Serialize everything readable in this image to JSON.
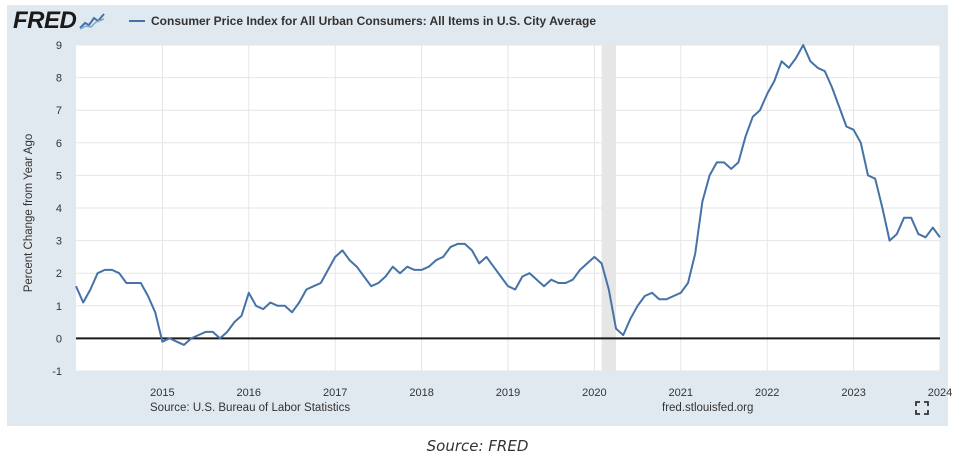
{
  "brand": {
    "logo_text": "FRED"
  },
  "chart_data": {
    "type": "line",
    "title": "Consumer Price Index for All Urban Consumers: All Items in U.S. City Average",
    "ylabel": "Percent Change from Year Ago",
    "xlabel": "",
    "xlim": [
      "2014-01",
      "2024-01"
    ],
    "ylim": [
      -1,
      9
    ],
    "yticks": [
      -1,
      0,
      1,
      2,
      3,
      4,
      5,
      6,
      7,
      8,
      9
    ],
    "xticks": [
      "2015",
      "2016",
      "2017",
      "2018",
      "2019",
      "2020",
      "2021",
      "2022",
      "2023",
      "2024"
    ],
    "grid": true,
    "zero_line": true,
    "recession_shade": {
      "start": "2020-02",
      "end": "2020-04"
    },
    "series": [
      {
        "color": "#4572a7",
        "points": [
          [
            "2014-01",
            1.6
          ],
          [
            "2014-02",
            1.1
          ],
          [
            "2014-03",
            1.5
          ],
          [
            "2014-04",
            2.0
          ],
          [
            "2014-05",
            2.1
          ],
          [
            "2014-06",
            2.1
          ],
          [
            "2014-07",
            2.0
          ],
          [
            "2014-08",
            1.7
          ],
          [
            "2014-09",
            1.7
          ],
          [
            "2014-10",
            1.7
          ],
          [
            "2014-11",
            1.3
          ],
          [
            "2014-12",
            0.8
          ],
          [
            "2015-01",
            -0.1
          ],
          [
            "2015-02",
            0.0
          ],
          [
            "2015-03",
            -0.1
          ],
          [
            "2015-04",
            -0.2
          ],
          [
            "2015-05",
            0.0
          ],
          [
            "2015-06",
            0.1
          ],
          [
            "2015-07",
            0.2
          ],
          [
            "2015-08",
            0.2
          ],
          [
            "2015-09",
            0.0
          ],
          [
            "2015-10",
            0.2
          ],
          [
            "2015-11",
            0.5
          ],
          [
            "2015-12",
            0.7
          ],
          [
            "2016-01",
            1.4
          ],
          [
            "2016-02",
            1.0
          ],
          [
            "2016-03",
            0.9
          ],
          [
            "2016-04",
            1.1
          ],
          [
            "2016-05",
            1.0
          ],
          [
            "2016-06",
            1.0
          ],
          [
            "2016-07",
            0.8
          ],
          [
            "2016-08",
            1.1
          ],
          [
            "2016-09",
            1.5
          ],
          [
            "2016-10",
            1.6
          ],
          [
            "2016-11",
            1.7
          ],
          [
            "2016-12",
            2.1
          ],
          [
            "2017-01",
            2.5
          ],
          [
            "2017-02",
            2.7
          ],
          [
            "2017-03",
            2.4
          ],
          [
            "2017-04",
            2.2
          ],
          [
            "2017-05",
            1.9
          ],
          [
            "2017-06",
            1.6
          ],
          [
            "2017-07",
            1.7
          ],
          [
            "2017-08",
            1.9
          ],
          [
            "2017-09",
            2.2
          ],
          [
            "2017-10",
            2.0
          ],
          [
            "2017-11",
            2.2
          ],
          [
            "2017-12",
            2.1
          ],
          [
            "2018-01",
            2.1
          ],
          [
            "2018-02",
            2.2
          ],
          [
            "2018-03",
            2.4
          ],
          [
            "2018-04",
            2.5
          ],
          [
            "2018-05",
            2.8
          ],
          [
            "2018-06",
            2.9
          ],
          [
            "2018-07",
            2.9
          ],
          [
            "2018-08",
            2.7
          ],
          [
            "2018-09",
            2.3
          ],
          [
            "2018-10",
            2.5
          ],
          [
            "2018-11",
            2.2
          ],
          [
            "2018-12",
            1.9
          ],
          [
            "2019-01",
            1.6
          ],
          [
            "2019-02",
            1.5
          ],
          [
            "2019-03",
            1.9
          ],
          [
            "2019-04",
            2.0
          ],
          [
            "2019-05",
            1.8
          ],
          [
            "2019-06",
            1.6
          ],
          [
            "2019-07",
            1.8
          ],
          [
            "2019-08",
            1.7
          ],
          [
            "2019-09",
            1.7
          ],
          [
            "2019-10",
            1.8
          ],
          [
            "2019-11",
            2.1
          ],
          [
            "2019-12",
            2.3
          ],
          [
            "2020-01",
            2.5
          ],
          [
            "2020-02",
            2.3
          ],
          [
            "2020-03",
            1.5
          ],
          [
            "2020-04",
            0.3
          ],
          [
            "2020-05",
            0.1
          ],
          [
            "2020-06",
            0.6
          ],
          [
            "2020-07",
            1.0
          ],
          [
            "2020-08",
            1.3
          ],
          [
            "2020-09",
            1.4
          ],
          [
            "2020-10",
            1.2
          ],
          [
            "2020-11",
            1.2
          ],
          [
            "2020-12",
            1.3
          ],
          [
            "2021-01",
            1.4
          ],
          [
            "2021-02",
            1.7
          ],
          [
            "2021-03",
            2.6
          ],
          [
            "2021-04",
            4.2
          ],
          [
            "2021-05",
            5.0
          ],
          [
            "2021-06",
            5.4
          ],
          [
            "2021-07",
            5.4
          ],
          [
            "2021-08",
            5.2
          ],
          [
            "2021-09",
            5.4
          ],
          [
            "2021-10",
            6.2
          ],
          [
            "2021-11",
            6.8
          ],
          [
            "2021-12",
            7.0
          ],
          [
            "2022-01",
            7.5
          ],
          [
            "2022-02",
            7.9
          ],
          [
            "2022-03",
            8.5
          ],
          [
            "2022-04",
            8.3
          ],
          [
            "2022-05",
            8.6
          ],
          [
            "2022-06",
            9.0
          ],
          [
            "2022-07",
            8.5
          ],
          [
            "2022-08",
            8.3
          ],
          [
            "2022-09",
            8.2
          ],
          [
            "2022-10",
            7.7
          ],
          [
            "2022-11",
            7.1
          ],
          [
            "2022-12",
            6.5
          ],
          [
            "2023-01",
            6.4
          ],
          [
            "2023-02",
            6.0
          ],
          [
            "2023-03",
            5.0
          ],
          [
            "2023-04",
            4.9
          ],
          [
            "2023-05",
            4.0
          ],
          [
            "2023-06",
            3.0
          ],
          [
            "2023-07",
            3.2
          ],
          [
            "2023-08",
            3.7
          ],
          [
            "2023-09",
            3.7
          ],
          [
            "2023-10",
            3.2
          ],
          [
            "2023-11",
            3.1
          ],
          [
            "2023-12",
            3.4
          ],
          [
            "2024-01",
            3.1
          ]
        ]
      }
    ]
  },
  "footer": {
    "source_left": "Source: U.S. Bureau of Labor Statistics",
    "source_right": "fred.stlouisfed.org"
  },
  "caption": "Source: FRED",
  "icons": {
    "logo_mark": "fred-graph-icon",
    "fullscreen": "fullscreen-icon"
  }
}
